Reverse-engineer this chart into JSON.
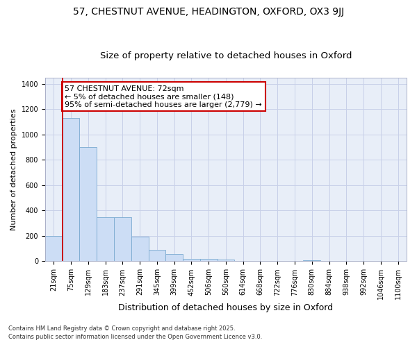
{
  "title1": "57, CHESTNUT AVENUE, HEADINGTON, OXFORD, OX3 9JJ",
  "title2": "Size of property relative to detached houses in Oxford",
  "xlabel": "Distribution of detached houses by size in Oxford",
  "ylabel": "Number of detached properties",
  "bin_labels": [
    "21sqm",
    "75sqm",
    "129sqm",
    "183sqm",
    "237sqm",
    "291sqm",
    "345sqm",
    "399sqm",
    "452sqm",
    "506sqm",
    "560sqm",
    "614sqm",
    "668sqm",
    "722sqm",
    "776sqm",
    "830sqm",
    "884sqm",
    "938sqm",
    "992sqm",
    "1046sqm",
    "1100sqm"
  ],
  "bar_heights": [
    200,
    1130,
    900,
    350,
    350,
    195,
    90,
    55,
    20,
    20,
    15,
    0,
    0,
    0,
    0,
    10,
    0,
    0,
    0,
    0,
    0
  ],
  "bar_color": "#ccddf5",
  "bar_edge_color": "#7aaad0",
  "vline_index": 1,
  "annotation_line1": "57 CHESTNUT AVENUE: 72sqm",
  "annotation_line2": "← 5% of detached houses are smaller (148)",
  "annotation_line3": "95% of semi-detached houses are larger (2,779) →",
  "annotation_box_color": "white",
  "annotation_box_edge_color": "#cc0000",
  "vline_color": "#cc0000",
  "ylim": [
    0,
    1450
  ],
  "yticks": [
    0,
    200,
    400,
    600,
    800,
    1000,
    1200,
    1400
  ],
  "grid_color": "#c8d0e8",
  "bg_color": "#e8eef8",
  "footer1": "Contains HM Land Registry data © Crown copyright and database right 2025.",
  "footer2": "Contains public sector information licensed under the Open Government Licence v3.0.",
  "title1_fontsize": 10,
  "title2_fontsize": 9.5,
  "xlabel_fontsize": 9,
  "ylabel_fontsize": 8,
  "tick_fontsize": 7,
  "annotation_fontsize": 8,
  "footer_fontsize": 6
}
